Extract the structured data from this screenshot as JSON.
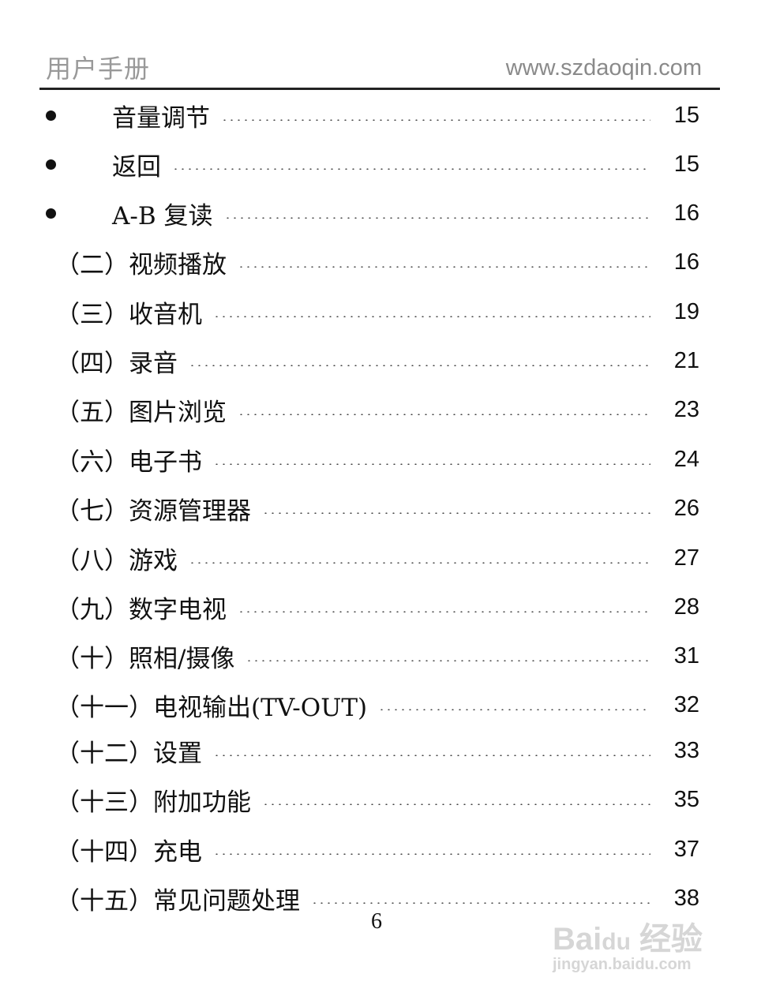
{
  "header": {
    "title": "用户手册",
    "url": "www.szdaoqin.com"
  },
  "toc": [
    {
      "bullet": true,
      "title": "音量调节",
      "page": "15"
    },
    {
      "bullet": true,
      "title": "返回",
      "page": "15"
    },
    {
      "bullet": true,
      "title": "A-B 复读",
      "page": "16"
    },
    {
      "bullet": false,
      "title": "（二）视频播放",
      "page": "16"
    },
    {
      "bullet": false,
      "title": "（三）收音机",
      "page": "19"
    },
    {
      "bullet": false,
      "title": "（四）录音",
      "page": "21"
    },
    {
      "bullet": false,
      "title": "（五）图片浏览",
      "page": "23"
    },
    {
      "bullet": false,
      "title": "（六）电子书",
      "page": "24"
    },
    {
      "bullet": false,
      "title": "（七）资源管理器",
      "page": "26"
    },
    {
      "bullet": false,
      "title": "（八）游戏",
      "page": "27"
    },
    {
      "bullet": false,
      "title": "（九）数字电视",
      "page": "28"
    },
    {
      "bullet": false,
      "title": "（十）照相/摄像",
      "page": "31"
    },
    {
      "bullet": false,
      "title": "（十一）电视输出(TV-OUT)",
      "page": "32"
    },
    {
      "bullet": false,
      "title": "（十二）设置",
      "page": "33"
    },
    {
      "bullet": false,
      "title": "（十三）附加功能",
      "page": "35"
    },
    {
      "bullet": false,
      "title": "（十四）充电",
      "page": "37"
    },
    {
      "bullet": false,
      "title": "（十五）常见问题处理",
      "page": "38"
    }
  ],
  "page_number": "6",
  "watermark": {
    "logo": "Bai du 经验",
    "url": "jingyan.baidu.com"
  }
}
